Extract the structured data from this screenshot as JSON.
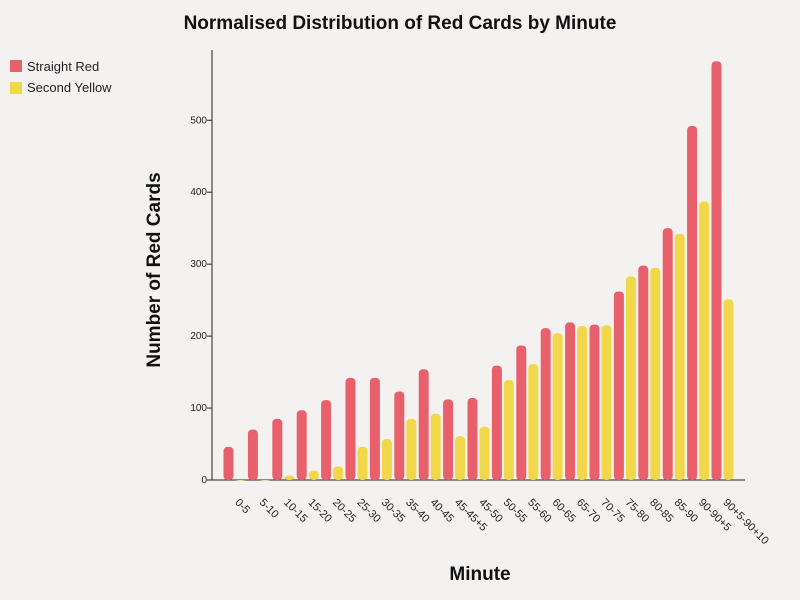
{
  "colors": {
    "straight_red": "#e8606b",
    "second_yellow": "#f0d84a"
  },
  "chart_data": {
    "type": "bar",
    "title": "Normalised Distribution of Red Cards by Minute",
    "xlabel": "Minute",
    "ylabel": "Number of Red Cards",
    "ylim": [
      0,
      590
    ],
    "yticks": [
      0,
      100,
      200,
      300,
      400,
      500
    ],
    "grid": false,
    "legend_position": "top-left",
    "categories": [
      "0-5",
      "5-10",
      "10-15",
      "15-20",
      "20-25",
      "25-30",
      "30-35",
      "35-40",
      "40-45",
      "45-45+5",
      "45-50",
      "50-55",
      "55-60",
      "60-65",
      "65-70",
      "70-75",
      "75-80",
      "80-85",
      "85-90",
      "90-90+5",
      "90+5-90+10"
    ],
    "series": [
      {
        "name": "Straight Red",
        "values": [
          46,
          70,
          85,
          97,
          111,
          142,
          142,
          123,
          154,
          112,
          114,
          159,
          187,
          211,
          219,
          216,
          262,
          298,
          350,
          492,
          582
        ]
      },
      {
        "name": "Second Yellow",
        "values": [
          0,
          0,
          6,
          13,
          19,
          46,
          57,
          85,
          92,
          61,
          74,
          139,
          161,
          204,
          214,
          215,
          283,
          295,
          342,
          387,
          251
        ]
      }
    ]
  }
}
